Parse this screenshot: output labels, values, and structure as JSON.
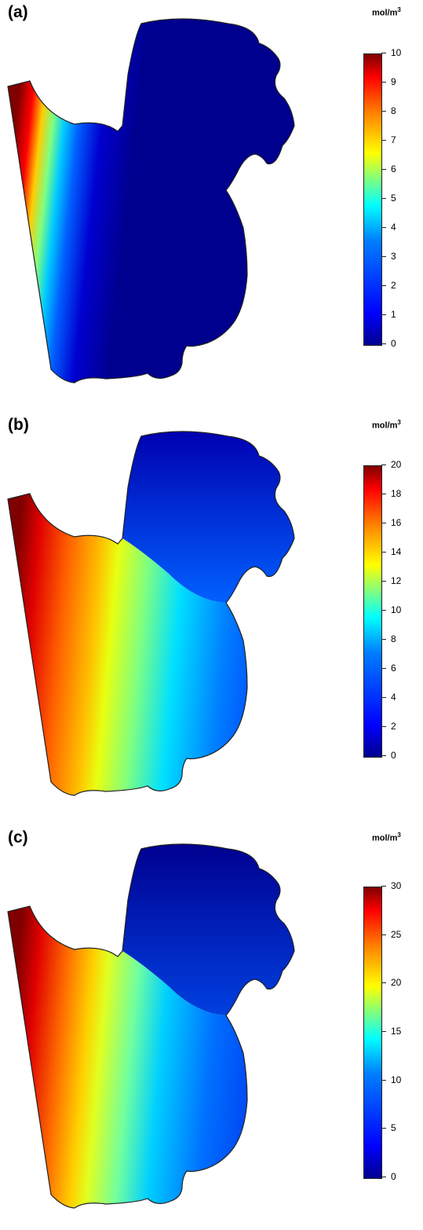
{
  "panels": [
    {
      "label": "(a)",
      "unit": "mol/m",
      "unit_exp": "3",
      "ticks": [
        "10",
        "9",
        "8",
        "7",
        "6",
        "5",
        "4",
        "3",
        "2",
        "1",
        "0"
      ],
      "max": 10
    },
    {
      "label": "(b)",
      "unit": "mol/m",
      "unit_exp": "3",
      "ticks": [
        "20",
        "18",
        "16",
        "14",
        "12",
        "10",
        "8",
        "6",
        "4",
        "2",
        "0"
      ],
      "max": 20
    },
    {
      "label": "(c)",
      "unit": "mol/m",
      "unit_exp": "3",
      "ticks": [
        "30",
        "25",
        "20",
        "15",
        "10",
        "5",
        "0"
      ],
      "max": 30
    }
  ],
  "colors": {
    "low": "#00008f",
    "mid": "#00ffff",
    "high": "#800000",
    "yellow": "#ffff00"
  }
}
